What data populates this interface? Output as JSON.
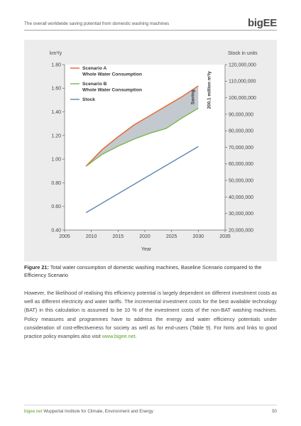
{
  "header": {
    "title": "The overall worldwide saving potential from domestic washing machines",
    "logo": "bigEE"
  },
  "chart_data": {
    "type": "line",
    "left_axis_unit": "km³/y",
    "right_axis_unit": "Stock in units",
    "xlabel": "Year",
    "xlim": [
      2005,
      2035
    ],
    "ylim_left": [
      0.4,
      1.8
    ],
    "ylim_right": [
      20000000,
      120000000
    ],
    "x_ticks": [
      "2005",
      "2010",
      "2015",
      "2020",
      "2025",
      "2030",
      "2035"
    ],
    "y_ticks_left": [
      "0.40",
      "0.60",
      "0.80",
      "1.00",
      "1.20",
      "1.40",
      "1.60",
      "1.80"
    ],
    "y_ticks_right": [
      "20,000,000",
      "30,000,000",
      "40,000,000",
      "50,000,000",
      "60,000,000",
      "70,000,000",
      "80,000,000",
      "90,000,000",
      "100,000,000",
      "110,000,000",
      "120,000,000"
    ],
    "legend_position": "top-left",
    "series": [
      {
        "name": "Scenario A Whole Water Consumption",
        "legend_lines": [
          "Scenario A",
          "Whole Water Consumption"
        ],
        "color": "#e8632b",
        "axis": "left",
        "x": [
          2009,
          2012,
          2015,
          2018,
          2021,
          2024,
          2027,
          2030
        ],
        "y": [
          0.94,
          1.08,
          1.19,
          1.29,
          1.37,
          1.45,
          1.53,
          1.62
        ]
      },
      {
        "name": "Scenario B Whole Water Consumption",
        "legend_lines": [
          "Scenario B",
          "Whole Water Consumption"
        ],
        "color": "#7ab648",
        "axis": "left",
        "x": [
          2009,
          2012,
          2015,
          2018,
          2021,
          2024,
          2027,
          2030
        ],
        "y": [
          0.94,
          1.04,
          1.11,
          1.17,
          1.22,
          1.26,
          1.35,
          1.43
        ]
      },
      {
        "name": "Stock",
        "legend_lines": [
          "Stock"
        ],
        "color": "#5b87b0",
        "axis": "right",
        "x": [
          2009,
          2030
        ],
        "y": [
          30500000,
          70500000
        ]
      }
    ],
    "annotation": {
      "label": "Saving",
      "value_text": "200.1 million m³/y",
      "x": 2030
    },
    "saving_fill": "#b9bfc6"
  },
  "caption": {
    "label": "Figure 21:",
    "text": " Total water consumption of domestic washing machines, Baseline Scenario compared to the Efficiency Scenario"
  },
  "body": {
    "paragraph": "However, the likelihood of realising this efficiency potential is largely dependent on different investment costs as well as different electricity and water tariffs. The incremental investment costs for the best available technology (BAT) in this calculation is assumed to be 10 % of the investment costs of the non-BAT washing machines. Policy measures and programmes have to address the energy and water efficiency potentials under consideration of cost-effectiveness for society as well as for end-users (Table 9). For hints and links to good practice policy examples also visit ",
    "link": "www.bigee.net",
    "end": "."
  },
  "footer": {
    "link": "bigee.net",
    "text": "  Wuppertal Institute for Climate, Environment and Energy",
    "page": "50"
  }
}
